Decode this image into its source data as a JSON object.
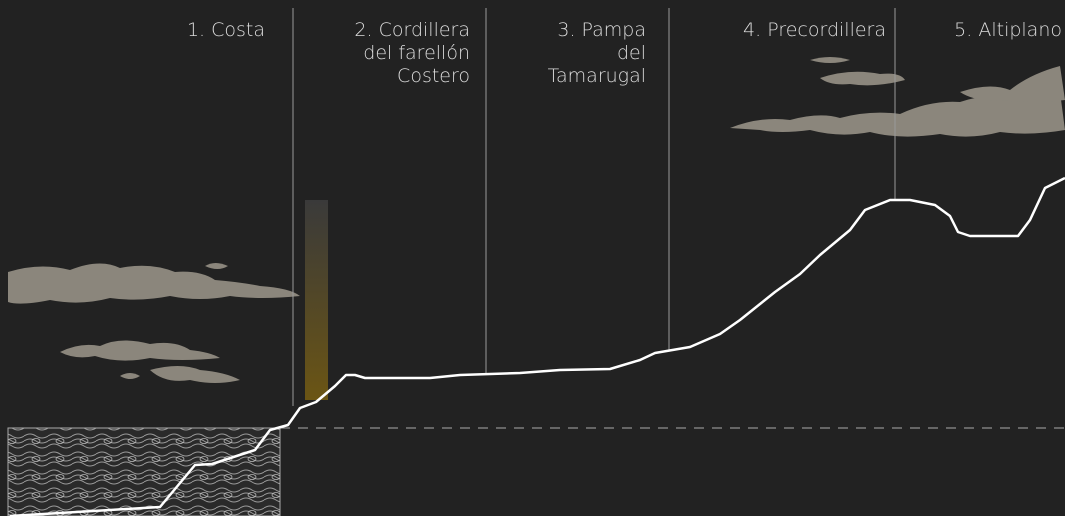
{
  "zones": [
    {
      "lines": [
        "1. Costa"
      ]
    },
    {
      "lines": [
        "2. Cordillera",
        "del farellón",
        "Costero"
      ]
    },
    {
      "lines": [
        "3. Pampa",
        "del",
        "Tamarugal"
      ]
    },
    {
      "lines": [
        "4. Precordillera"
      ]
    },
    {
      "lines": [
        "5. Altiplano"
      ]
    }
  ]
}
